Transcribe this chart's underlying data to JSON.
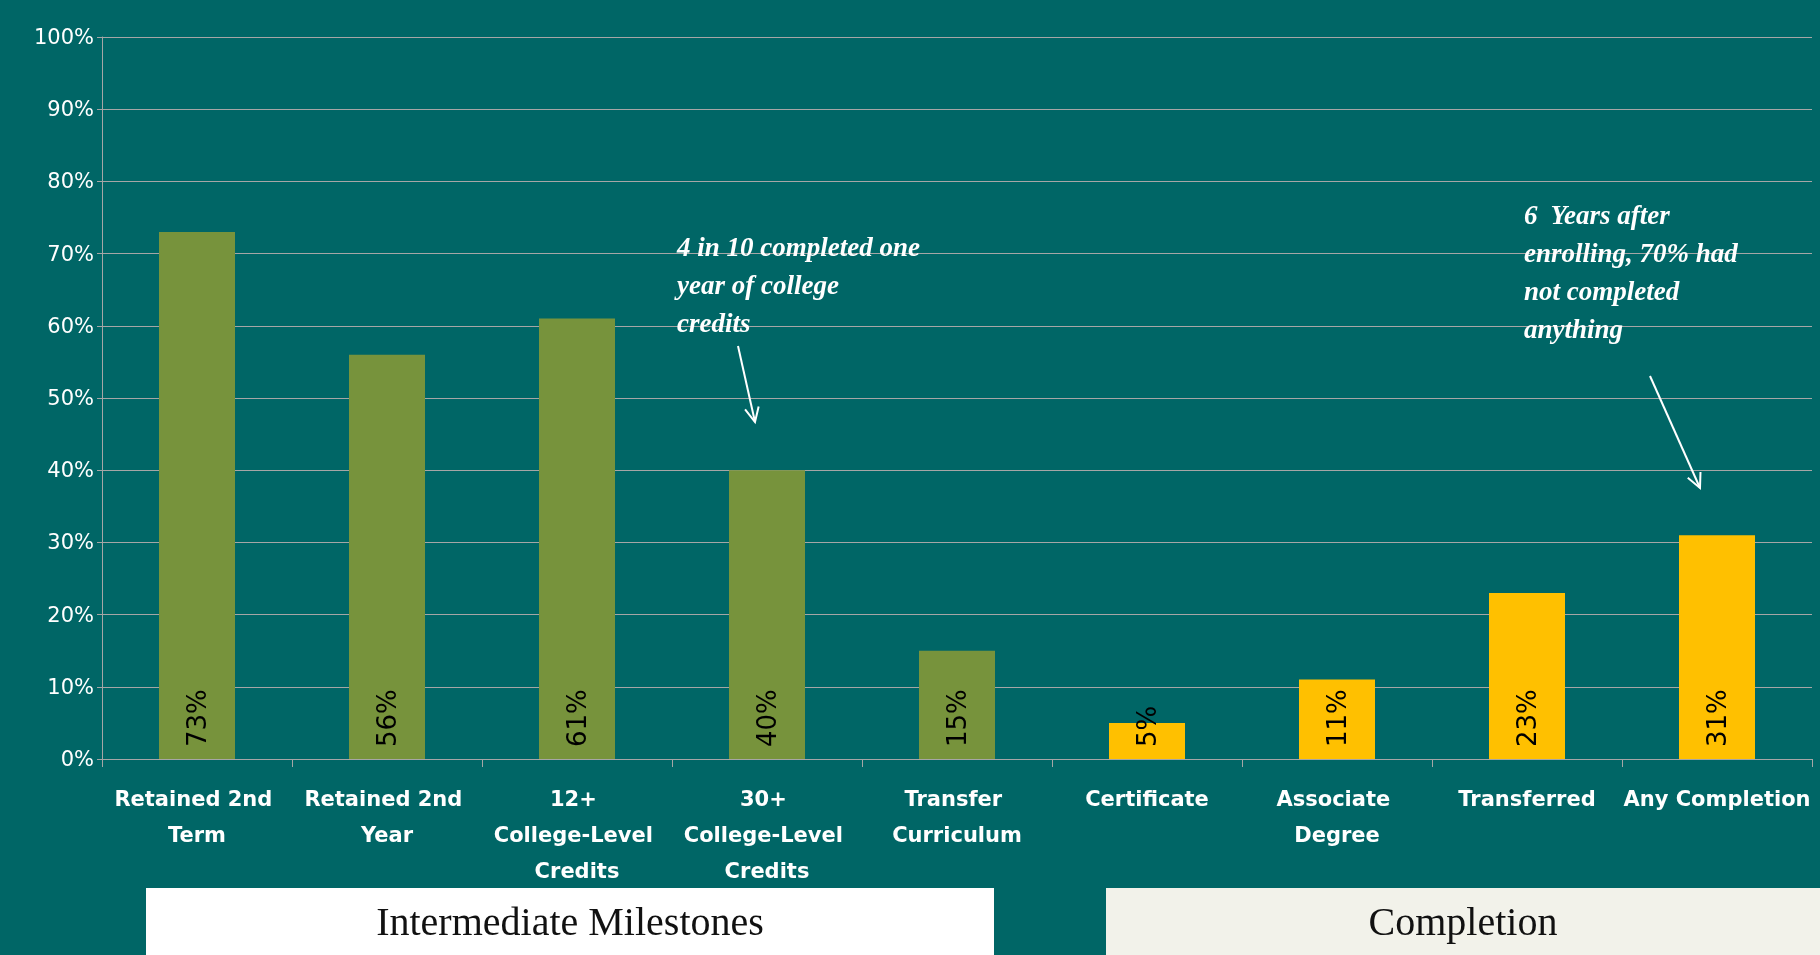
{
  "chart_data": {
    "type": "bar",
    "categories": [
      "Retained 2nd Term",
      "Retained 2nd Year",
      "12+ College-Level Credits",
      "30+ College-Level Credits",
      "Transfer Curriculum",
      "Certificate",
      "Associate Degree",
      "Transferred",
      "Any Completion"
    ],
    "values": [
      73,
      56,
      61,
      40,
      15,
      5,
      11,
      23,
      31
    ],
    "colors": [
      "#77933c",
      "#77933c",
      "#77933c",
      "#77933c",
      "#77933c",
      "#ffc000",
      "#ffc000",
      "#ffc000",
      "#ffc000"
    ],
    "value_labels": [
      "73%",
      "56%",
      "61%",
      "40%",
      "15%",
      "5%",
      "11%",
      "23%",
      "31%"
    ],
    "ylim": [
      0,
      100
    ],
    "yticks": [
      {
        "value": 0,
        "label": "0%"
      },
      {
        "value": 10,
        "label": "10%"
      },
      {
        "value": 20,
        "label": "20%"
      },
      {
        "value": 30,
        "label": "30%"
      },
      {
        "value": 40,
        "label": "40%"
      },
      {
        "value": 50,
        "label": "50%"
      },
      {
        "value": 60,
        "label": "60%"
      },
      {
        "value": 70,
        "label": "70%"
      },
      {
        "value": 80,
        "label": "80%"
      },
      {
        "value": 90,
        "label": "90%"
      },
      {
        "value": 100,
        "label": "100%"
      }
    ],
    "grid": "y",
    "annotations": [
      "4 in 10 completed one year of college credits",
      "6  Years after enrolling, 70% had not completed anything",
      "Intermediate Milestones",
      "Completion"
    ]
  }
}
